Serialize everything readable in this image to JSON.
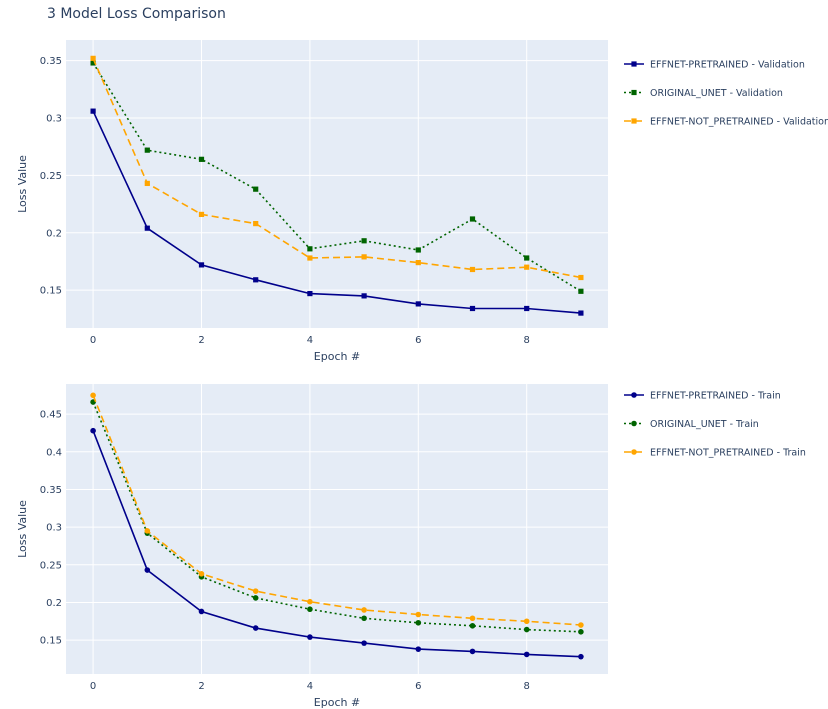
{
  "title": "3 Model Loss Comparison",
  "chart_data": [
    {
      "type": "line",
      "xlabel": "Epoch #",
      "ylabel": "Loss Value",
      "xlim": [
        -0.5,
        9.5
      ],
      "ylim": [
        0.117,
        0.368
      ],
      "xticks": [
        "0",
        "2",
        "4",
        "6",
        "8"
      ],
      "yticks": [
        "0.15",
        "0.2",
        "0.25",
        "0.3",
        "0.35"
      ],
      "x": [
        0,
        1,
        2,
        3,
        4,
        5,
        6,
        7,
        8,
        9
      ],
      "marker": "square",
      "series": [
        {
          "name": "EFFNET-PRETRAINED - Validation",
          "color": "#00008b",
          "dash": "solid",
          "values": [
            0.306,
            0.204,
            0.172,
            0.159,
            0.147,
            0.145,
            0.138,
            0.134,
            0.134,
            0.13
          ]
        },
        {
          "name": "ORIGINAL_UNET - Validation",
          "color": "#006400",
          "dash": "dot",
          "values": [
            0.348,
            0.272,
            0.264,
            0.238,
            0.186,
            0.193,
            0.185,
            0.212,
            0.178,
            0.149
          ]
        },
        {
          "name": "EFFNET-NOT_PRETRAINED - Validation",
          "color": "#ffa500",
          "dash": "dash",
          "values": [
            0.352,
            0.243,
            0.216,
            0.208,
            0.178,
            0.179,
            0.174,
            0.168,
            0.17,
            0.161
          ]
        }
      ]
    },
    {
      "type": "line",
      "xlabel": "Epoch #",
      "ylabel": "Loss Value",
      "xlim": [
        -0.5,
        9.5
      ],
      "ylim": [
        0.105,
        0.49
      ],
      "xticks": [
        "0",
        "2",
        "4",
        "6",
        "8"
      ],
      "yticks": [
        "0.15",
        "0.2",
        "0.25",
        "0.3",
        "0.35",
        "0.4",
        "0.45"
      ],
      "x": [
        0,
        1,
        2,
        3,
        4,
        5,
        6,
        7,
        8,
        9
      ],
      "marker": "circle",
      "series": [
        {
          "name": "EFFNET-PRETRAINED - Train",
          "color": "#00008b",
          "dash": "solid",
          "values": [
            0.428,
            0.243,
            0.188,
            0.166,
            0.154,
            0.146,
            0.138,
            0.135,
            0.131,
            0.128
          ]
        },
        {
          "name": "ORIGINAL_UNET - Train",
          "color": "#006400",
          "dash": "dot",
          "values": [
            0.466,
            0.292,
            0.234,
            0.206,
            0.191,
            0.179,
            0.173,
            0.169,
            0.164,
            0.161
          ]
        },
        {
          "name": "EFFNET-NOT_PRETRAINED - Train",
          "color": "#ffa500",
          "dash": "dash",
          "values": [
            0.475,
            0.295,
            0.238,
            0.215,
            0.201,
            0.19,
            0.184,
            0.179,
            0.175,
            0.17
          ]
        }
      ]
    }
  ]
}
